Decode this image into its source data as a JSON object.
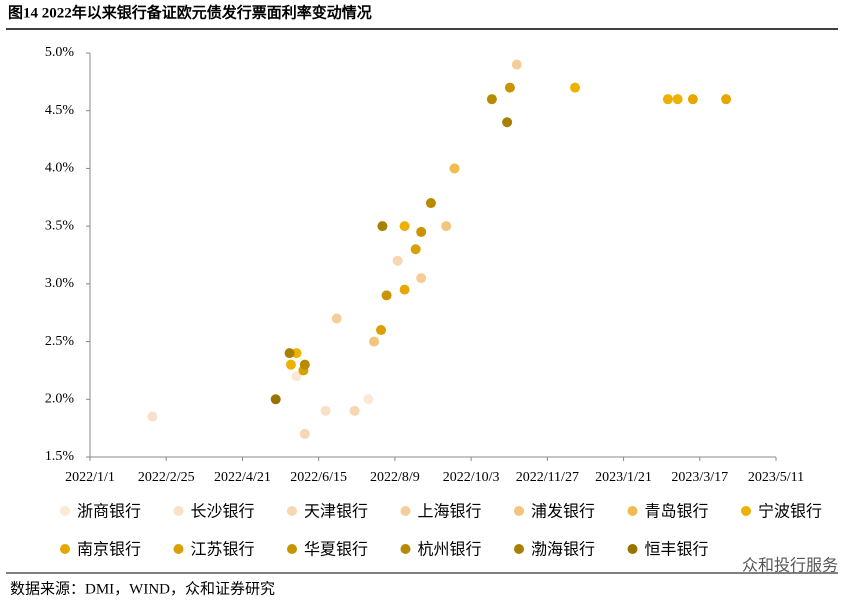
{
  "chart_data": {
    "type": "scatter",
    "title": "图14 2022年以来银行备证欧元债发行票面利率变动情况",
    "source": "数据来源：DMI，WIND，众和证券研究",
    "watermark": "众和投行服务",
    "xlim": [
      "2022/1/1",
      "2023/5/11"
    ],
    "xticks": [
      "2022/1/1",
      "2022/2/25",
      "2022/4/21",
      "2022/6/15",
      "2022/8/9",
      "2022/10/3",
      "2022/11/27",
      "2023/1/21",
      "2023/3/17",
      "2023/5/11"
    ],
    "ylim": [
      1.5,
      5.0
    ],
    "yticks": [
      {
        "value": 1.5,
        "label": "1.5%"
      },
      {
        "value": 2.0,
        "label": "2.0%"
      },
      {
        "value": 2.5,
        "label": "2.5%"
      },
      {
        "value": 3.0,
        "label": "3.0%"
      },
      {
        "value": 3.5,
        "label": "3.5%"
      },
      {
        "value": 4.0,
        "label": "4.0%"
      },
      {
        "value": 4.5,
        "label": "4.5%"
      },
      {
        "value": 5.0,
        "label": "5.0%"
      }
    ],
    "series": [
      {
        "name": "浙商银行",
        "color": "#fbe9d6",
        "x": [
          "2022/5/30",
          "2022/7/21"
        ],
        "values": [
          2.2,
          2.0
        ]
      },
      {
        "name": "长沙银行",
        "color": "#f9e0c6",
        "x": [
          "2022/2/15",
          "2022/6/20"
        ],
        "values": [
          1.85,
          1.9
        ]
      },
      {
        "name": "天津银行",
        "color": "#f7d7b1",
        "x": [
          "2022/6/5",
          "2022/7/11",
          "2022/8/11"
        ],
        "values": [
          1.7,
          1.9,
          3.2
        ]
      },
      {
        "name": "上海银行",
        "color": "#f5cd98",
        "x": [
          "2022/6/28",
          "2022/8/28",
          "2022/11/5"
        ],
        "values": [
          2.7,
          3.05,
          4.9
        ]
      },
      {
        "name": "浦发银行",
        "color": "#f3c47c",
        "x": [
          "2022/7/25",
          "2022/9/15"
        ],
        "values": [
          2.5,
          3.5
        ]
      },
      {
        "name": "青岛银行",
        "color": "#f0bb4f",
        "x": [
          "2022/9/21"
        ],
        "values": [
          4.0
        ]
      },
      {
        "name": "宁波银行",
        "color": "#eeb100",
        "x": [
          "2022/5/26",
          "2022/5/30",
          "2022/8/16",
          "2022/12/17",
          "2023/2/22",
          "2023/3/1"
        ],
        "values": [
          2.3,
          2.4,
          3.5,
          4.7,
          4.6,
          4.6
        ]
      },
      {
        "name": "南京银行",
        "color": "#e5a800",
        "x": [
          "2022/8/16",
          "2023/3/12",
          "2023/4/5"
        ],
        "values": [
          2.95,
          4.6,
          4.6
        ]
      },
      {
        "name": "江苏银行",
        "color": "#d8a000",
        "x": [
          "2022/6/4",
          "2022/7/30",
          "2022/8/24"
        ],
        "values": [
          2.25,
          2.6,
          3.3
        ]
      },
      {
        "name": "华夏银行",
        "color": "#c89400",
        "x": [
          "2022/8/3",
          "2022/8/28",
          "2022/10/31"
        ],
        "values": [
          2.9,
          3.45,
          4.7
        ]
      },
      {
        "name": "杭州银行",
        "color": "#b88a00",
        "x": [
          "2022/6/5",
          "2022/9/4",
          "2022/10/18"
        ],
        "values": [
          2.3,
          3.7,
          4.6
        ]
      },
      {
        "name": "渤海银行",
        "color": "#a88000",
        "x": [
          "2022/5/25",
          "2022/7/31",
          "2022/10/29"
        ],
        "values": [
          2.4,
          3.5,
          4.4
        ]
      },
      {
        "name": "恒丰银行",
        "color": "#987300",
        "x": [
          "2022/5/15"
        ],
        "values": [
          2.0
        ]
      }
    ]
  }
}
